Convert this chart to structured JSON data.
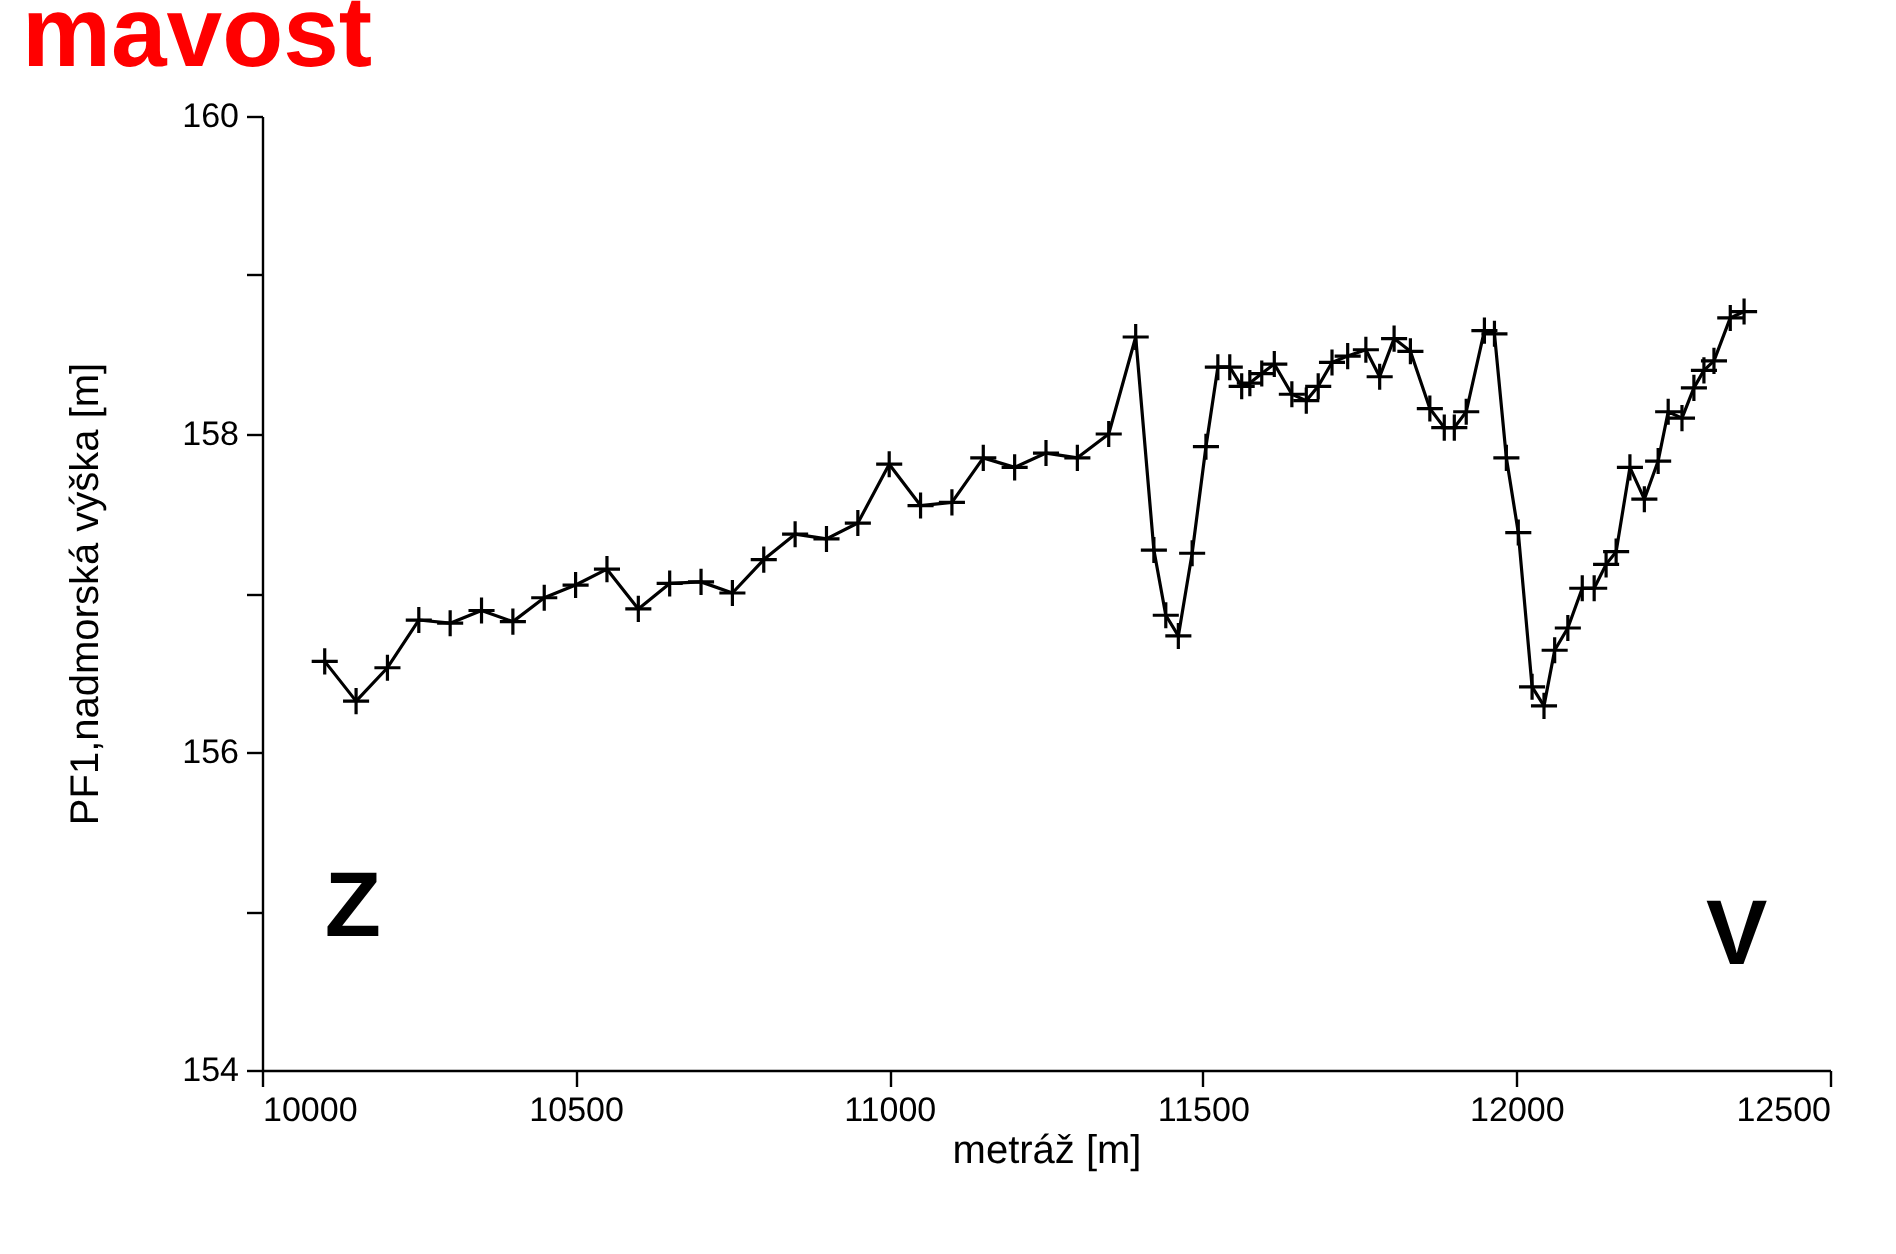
{
  "chart_data": {
    "type": "line",
    "title": "mavost",
    "xlabel": "metráž [m]",
    "ylabel": "PF1,nadmorská výška [m]",
    "annotations": [
      "Z",
      "V"
    ],
    "x": [
      10100,
      10150,
      10200,
      10250,
      10300,
      10350,
      10400,
      10450,
      10500,
      10550,
      10600,
      10650,
      10700,
      10750,
      10800,
      10850,
      10900,
      10950,
      11000,
      11050,
      11100,
      11150,
      11200,
      11250,
      11300,
      11350,
      11393,
      11422,
      11441,
      11461,
      11483,
      11505,
      11524,
      11543,
      11562,
      11575,
      11594,
      11614,
      11642,
      11665,
      11684,
      11706,
      11731,
      11760,
      11782,
      11805,
      11831,
      11862,
      11885,
      11901,
      11920,
      11949,
      11965,
      11984,
      12003,
      12025,
      12044,
      12061,
      12082,
      12105,
      12124,
      12143,
      12159,
      12181,
      12204,
      12226,
      12242,
      12264,
      12283,
      12299,
      12315,
      12341,
      12363
    ],
    "series": [
      {
        "color": "#000000",
        "values": [
          156.57,
          156.32,
          156.53,
          156.83,
          156.81,
          156.89,
          156.82,
          156.97,
          157.05,
          157.15,
          156.9,
          157.06,
          157.07,
          157.0,
          157.21,
          157.37,
          157.34,
          157.44,
          157.81,
          157.55,
          157.57,
          157.85,
          157.79,
          157.88,
          157.85,
          158.0,
          158.61,
          157.27,
          156.86,
          156.73,
          157.25,
          157.92,
          158.42,
          158.42,
          158.3,
          158.32,
          158.38,
          158.44,
          158.25,
          158.21,
          158.3,
          158.45,
          158.49,
          158.53,
          158.36,
          158.6,
          158.52,
          158.16,
          158.04,
          158.04,
          158.14,
          158.65,
          158.63,
          157.85,
          157.38,
          156.41,
          156.29,
          156.64,
          156.78,
          157.03,
          157.03,
          157.18,
          157.26,
          157.79,
          157.59,
          157.83,
          158.14,
          158.1,
          158.29,
          158.4,
          158.46,
          158.73,
          158.77
        ]
      }
    ],
    "xlim": [
      10000,
      12500
    ],
    "xticks": [
      10000,
      10500,
      11000,
      11500,
      12000,
      12500
    ],
    "ylim": [
      154,
      160
    ],
    "yticks": [
      154,
      {
        "value": 155,
        "label": null
      },
      156,
      {
        "value": 157,
        "label": null
      },
      158,
      {
        "value": 159,
        "label": null
      },
      160
    ],
    "grid": false,
    "marker": "cross",
    "line_style": "solid"
  }
}
